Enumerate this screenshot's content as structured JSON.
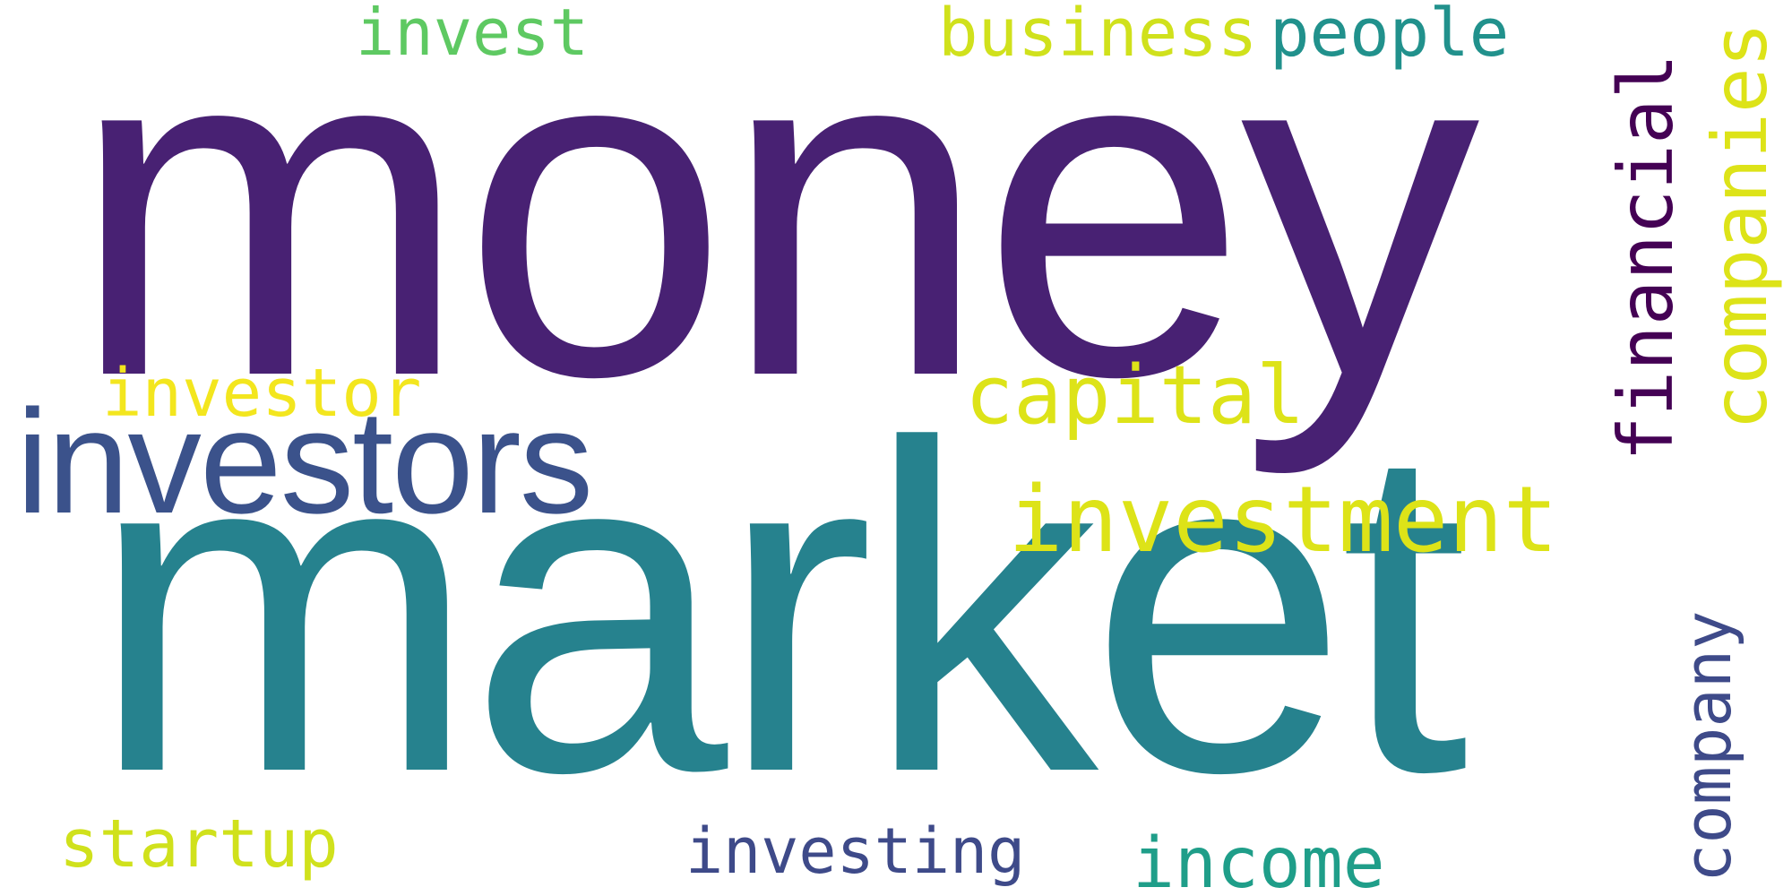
{
  "words": {
    "money": {
      "text": "money",
      "color": "#482173"
    },
    "market": {
      "text": "market",
      "color": "#26828e"
    },
    "investors": {
      "text": "investors",
      "color": "#3b528b"
    },
    "investment": {
      "text": "investment",
      "color": "#dde318"
    },
    "capital": {
      "text": "capital",
      "color": "#dde318"
    },
    "investor": {
      "text": "investor",
      "color": "#f3e61e"
    },
    "financial": {
      "text": "financial",
      "color": "#440154"
    },
    "companies": {
      "text": "companies",
      "color": "#dde318"
    },
    "company": {
      "text": "company",
      "color": "#3e4a89"
    },
    "business": {
      "text": "business",
      "color": "#d0e11c"
    },
    "people": {
      "text": "people",
      "color": "#21918c"
    },
    "invest": {
      "text": "invest",
      "color": "#5ec962"
    },
    "startup": {
      "text": "startup",
      "color": "#d0e11c"
    },
    "investing": {
      "text": "investing",
      "color": "#3e4a89"
    },
    "income": {
      "text": "income",
      "color": "#1f9e89"
    }
  }
}
